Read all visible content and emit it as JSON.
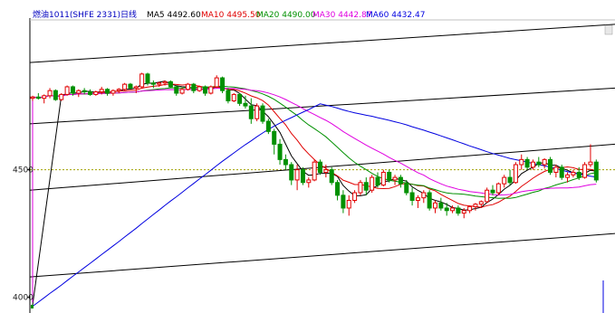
{
  "header": {
    "symbol": "燃油1011(SHFE 2331)日线",
    "ma_labels": [
      {
        "text": "MA5 4492.60",
        "color": "#000000"
      },
      {
        "text": "MA10 4495.50",
        "color": "#e00000"
      },
      {
        "text": "MA20 4490.00",
        "color": "#009000"
      },
      {
        "text": "MA30 4442.87",
        "color": "#e000e0"
      },
      {
        "text": "MA60 4432.47",
        "color": "#0000e0"
      }
    ]
  },
  "colors": {
    "up_candle": "#e00000",
    "down_candle": "#009000",
    "ma5": "#000000",
    "ma10": "#e00000",
    "ma20": "#009000",
    "ma30": "#e000e0",
    "ma60": "#0000e0",
    "dotted_level": "#a0a000",
    "channel_lines": "#000000"
  },
  "chart_data": {
    "type": "candlestick",
    "title": "燃油1011(SHFE 2331)日线",
    "y_tick_labels": [
      "4500",
      "4000"
    ],
    "ylim": [
      3960,
      5080
    ],
    "dotted_level": 4500,
    "candles": [
      [
        4780,
        4790,
        4770,
        4785
      ],
      [
        4785,
        4800,
        4775,
        4780
      ],
      [
        4780,
        4795,
        4760,
        4790
      ],
      [
        4790,
        4820,
        4780,
        4810
      ],
      [
        4810,
        4815,
        4770,
        4775
      ],
      [
        4775,
        4800,
        4770,
        4795
      ],
      [
        4795,
        4830,
        4790,
        4825
      ],
      [
        4825,
        4830,
        4790,
        4800
      ],
      [
        4800,
        4815,
        4785,
        4810
      ],
      [
        4810,
        4820,
        4795,
        4805
      ],
      [
        4805,
        4815,
        4790,
        4795
      ],
      [
        4795,
        4810,
        4790,
        4805
      ],
      [
        4805,
        4825,
        4795,
        4815
      ],
      [
        4815,
        4820,
        4790,
        4800
      ],
      [
        4800,
        4815,
        4790,
        4810
      ],
      [
        4810,
        4820,
        4800,
        4815
      ],
      [
        4815,
        4840,
        4810,
        4835
      ],
      [
        4835,
        4840,
        4815,
        4820
      ],
      [
        4820,
        4830,
        4800,
        4825
      ],
      [
        4825,
        4880,
        4820,
        4875
      ],
      [
        4875,
        4880,
        4830,
        4840
      ],
      [
        4840,
        4850,
        4820,
        4835
      ],
      [
        4835,
        4845,
        4825,
        4840
      ],
      [
        4840,
        4850,
        4830,
        4845
      ],
      [
        4845,
        4850,
        4820,
        4825
      ],
      [
        4825,
        4830,
        4790,
        4800
      ],
      [
        4800,
        4820,
        4795,
        4815
      ],
      [
        4815,
        4840,
        4810,
        4835
      ],
      [
        4835,
        4840,
        4800,
        4810
      ],
      [
        4810,
        4830,
        4805,
        4825
      ],
      [
        4825,
        4830,
        4790,
        4800
      ],
      [
        4800,
        4830,
        4795,
        4825
      ],
      [
        4825,
        4870,
        4820,
        4860
      ],
      [
        4860,
        4865,
        4800,
        4810
      ],
      [
        4810,
        4820,
        4760,
        4770
      ],
      [
        4770,
        4800,
        4765,
        4795
      ],
      [
        4795,
        4800,
        4750,
        4760
      ],
      [
        4760,
        4790,
        4740,
        4750
      ],
      [
        4750,
        4780,
        4680,
        4700
      ],
      [
        4700,
        4760,
        4690,
        4750
      ],
      [
        4750,
        4760,
        4680,
        4690
      ],
      [
        4690,
        4700,
        4640,
        4650
      ],
      [
        4650,
        4660,
        4560,
        4600
      ],
      [
        4600,
        4620,
        4520,
        4540
      ],
      [
        4540,
        4560,
        4500,
        4520
      ],
      [
        4520,
        4530,
        4440,
        4460
      ],
      [
        4460,
        4520,
        4420,
        4500
      ],
      [
        4500,
        4510,
        4440,
        4450
      ],
      [
        4450,
        4470,
        4430,
        4460
      ],
      [
        4460,
        4540,
        4455,
        4530
      ],
      [
        4530,
        4540,
        4480,
        4490
      ],
      [
        4490,
        4520,
        4470,
        4500
      ],
      [
        4500,
        4510,
        4440,
        4450
      ],
      [
        4450,
        4460,
        4380,
        4400
      ],
      [
        4400,
        4420,
        4330,
        4350
      ],
      [
        4350,
        4400,
        4320,
        4380
      ],
      [
        4380,
        4420,
        4370,
        4410
      ],
      [
        4410,
        4460,
        4400,
        4450
      ],
      [
        4450,
        4470,
        4400,
        4420
      ],
      [
        4420,
        4480,
        4410,
        4470
      ],
      [
        4470,
        4490,
        4430,
        4440
      ],
      [
        4440,
        4500,
        4435,
        4490
      ],
      [
        4490,
        4500,
        4450,
        4460
      ],
      [
        4460,
        4480,
        4440,
        4470
      ],
      [
        4470,
        4480,
        4430,
        4445
      ],
      [
        4445,
        4460,
        4400,
        4410
      ],
      [
        4410,
        4430,
        4360,
        4380
      ],
      [
        4380,
        4400,
        4350,
        4390
      ],
      [
        4390,
        4420,
        4370,
        4410
      ],
      [
        4410,
        4420,
        4340,
        4350
      ],
      [
        4350,
        4380,
        4330,
        4370
      ],
      [
        4370,
        4390,
        4340,
        4350
      ],
      [
        4350,
        4370,
        4320,
        4340
      ],
      [
        4340,
        4360,
        4330,
        4350
      ],
      [
        4350,
        4360,
        4320,
        4330
      ],
      [
        4330,
        4350,
        4310,
        4340
      ],
      [
        4340,
        4360,
        4330,
        4355
      ],
      [
        4355,
        4370,
        4340,
        4365
      ],
      [
        4365,
        4380,
        4350,
        4375
      ],
      [
        4375,
        4430,
        4370,
        4420
      ],
      [
        4420,
        4440,
        4400,
        4410
      ],
      [
        4410,
        4450,
        4400,
        4445
      ],
      [
        4445,
        4480,
        4430,
        4470
      ],
      [
        4470,
        4500,
        4440,
        4450
      ],
      [
        4450,
        4530,
        4445,
        4520
      ],
      [
        4520,
        4560,
        4500,
        4540
      ],
      [
        4540,
        4550,
        4500,
        4510
      ],
      [
        4510,
        4540,
        4500,
        4530
      ],
      [
        4530,
        4550,
        4510,
        4520
      ],
      [
        4520,
        4545,
        4505,
        4540
      ],
      [
        4540,
        4550,
        4480,
        4490
      ],
      [
        4490,
        4520,
        4470,
        4510
      ],
      [
        4510,
        4520,
        4460,
        4470
      ],
      [
        4470,
        4490,
        4450,
        4480
      ],
      [
        4480,
        4500,
        4470,
        4490
      ],
      [
        4490,
        4510,
        4460,
        4470
      ],
      [
        4470,
        4530,
        4465,
        4520
      ],
      [
        4520,
        4600,
        4510,
        4530
      ],
      [
        4530,
        4540,
        4450,
        4460
      ]
    ]
  }
}
